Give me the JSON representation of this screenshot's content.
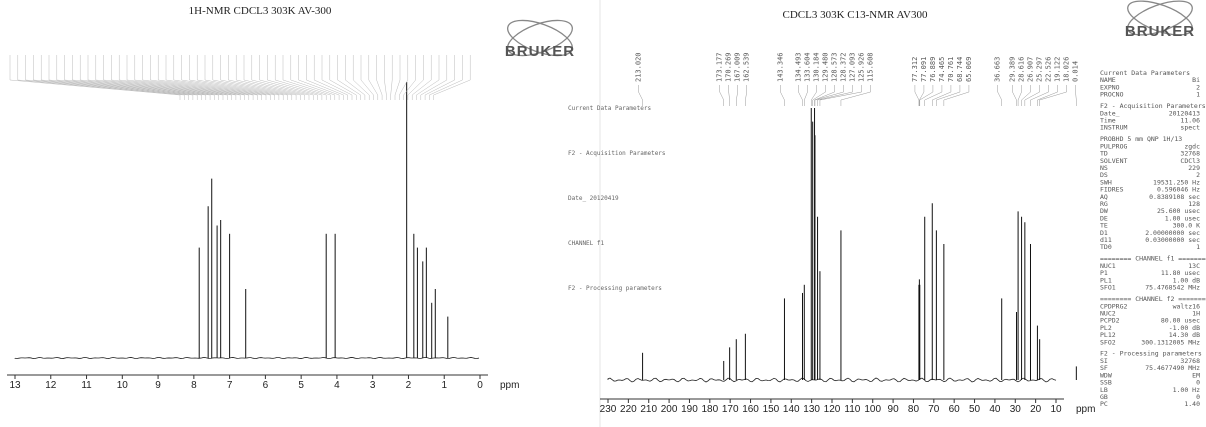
{
  "h1": {
    "title": "1H-NMR  CDCL3  303K  AV-300",
    "logo": "BRUKER",
    "xlim": [
      13,
      0
    ],
    "xticks": [
      13,
      12,
      11,
      10,
      9,
      8,
      7,
      6,
      5,
      4,
      3,
      2,
      1,
      0
    ],
    "xlabel": "ppm",
    "peaks": [
      {
        "shift": 7.85,
        "intensity": 40
      },
      {
        "shift": 7.6,
        "intensity": 55
      },
      {
        "shift": 7.5,
        "intensity": 65
      },
      {
        "shift": 7.35,
        "intensity": 48
      },
      {
        "shift": 7.25,
        "intensity": 50
      },
      {
        "shift": 7.0,
        "intensity": 45
      },
      {
        "shift": 6.55,
        "intensity": 25
      },
      {
        "shift": 4.3,
        "intensity": 45
      },
      {
        "shift": 4.05,
        "intensity": 45
      },
      {
        "shift": 2.05,
        "intensity": 100
      },
      {
        "shift": 1.85,
        "intensity": 45
      },
      {
        "shift": 1.75,
        "intensity": 40
      },
      {
        "shift": 1.6,
        "intensity": 35
      },
      {
        "shift": 1.5,
        "intensity": 40
      },
      {
        "shift": 1.35,
        "intensity": 20
      },
      {
        "shift": 1.25,
        "intensity": 25
      },
      {
        "shift": 0.9,
        "intensity": 15
      }
    ],
    "params": [
      "Current Data Parameters",
      "F2 - Acquisition Parameters",
      "Date_  20120419",
      "CHANNEL f1",
      "F2 - Processing parameters"
    ]
  },
  "c13": {
    "title": "CDCL3    303K   C13-NMR   AV300",
    "logo": "BRUKER",
    "xlim": [
      230,
      10
    ],
    "xticks": [
      230,
      220,
      210,
      200,
      190,
      180,
      170,
      160,
      150,
      140,
      130,
      120,
      110,
      100,
      90,
      80,
      70,
      60,
      50,
      40,
      30,
      20,
      10
    ],
    "xlabel": "ppm",
    "peaks": [
      {
        "label": "213.020",
        "intensity": 10
      },
      {
        "label": "173.177",
        "intensity": 7
      },
      {
        "label": "170.269",
        "intensity": 12
      },
      {
        "label": "167.009",
        "intensity": 15
      },
      {
        "label": "162.539",
        "intensity": 17
      },
      {
        "label": "143.346",
        "intensity": 30
      },
      {
        "label": "134.493",
        "intensity": 32
      },
      {
        "label": "133.604",
        "intensity": 35
      },
      {
        "label": "130.184",
        "intensity": 100
      },
      {
        "label": "129.480",
        "intensity": 95
      },
      {
        "label": "128.573",
        "intensity": 100
      },
      {
        "label": "128.372",
        "intensity": 90
      },
      {
        "label": "127.093",
        "intensity": 60
      },
      {
        "label": "125.926",
        "intensity": 40
      },
      {
        "label": "115.608",
        "intensity": 55
      },
      {
        "label": "77.312",
        "intensity": 35
      },
      {
        "label": "77.091",
        "intensity": 37
      },
      {
        "label": "76.889",
        "intensity": 35
      },
      {
        "label": "74.465",
        "intensity": 60
      },
      {
        "label": "70.761",
        "intensity": 65
      },
      {
        "label": "68.744",
        "intensity": 55
      },
      {
        "label": "65.069",
        "intensity": 50
      },
      {
        "label": "36.663",
        "intensity": 30
      },
      {
        "label": "29.389",
        "intensity": 25
      },
      {
        "label": "28.616",
        "intensity": 62
      },
      {
        "label": "26.907",
        "intensity": 60
      },
      {
        "label": "25.297",
        "intensity": 58
      },
      {
        "label": "22.526",
        "intensity": 50
      },
      {
        "label": "19.122",
        "intensity": 20
      },
      {
        "label": "18.026",
        "intensity": 15
      },
      {
        "label": "0.014",
        "intensity": 5
      }
    ],
    "params": [
      [
        "Current Data Parameters"
      ],
      [
        "NAME",
        "Bi"
      ],
      [
        "EXPNO",
        "2"
      ],
      [
        "PROCNO",
        "1"
      ],
      [
        "F2 - Acquisition Parameters"
      ],
      [
        "Date_",
        "20120413"
      ],
      [
        "Time",
        "11.06"
      ],
      [
        "INSTRUM",
        "spect"
      ],
      [
        "PROBHD   5 mm QNP 1H/13"
      ],
      [
        "PULPROG",
        "zgdc"
      ],
      [
        "TD",
        "32768"
      ],
      [
        "SOLVENT",
        "CDCl3"
      ],
      [
        "NS",
        "229"
      ],
      [
        "DS",
        "2"
      ],
      [
        "SWH",
        "19531.250 Hz"
      ],
      [
        "FIDRES",
        "0.596046 Hz"
      ],
      [
        "AQ",
        "0.8389108 sec"
      ],
      [
        "RG",
        "128"
      ],
      [
        "DW",
        "25.600 usec"
      ],
      [
        "DE",
        "1.00 usec"
      ],
      [
        "TE",
        "300.0 K"
      ],
      [
        "D1",
        "2.00000000 sec"
      ],
      [
        "d11",
        "0.03000000 sec"
      ],
      [
        "TD0",
        "1"
      ],
      [
        "======== CHANNEL f1 ========"
      ],
      [
        "NUC1",
        "13C"
      ],
      [
        "P1",
        "11.80 usec"
      ],
      [
        "PL1",
        "1.00 dB"
      ],
      [
        "SFO1",
        "75.4768542 MHz"
      ],
      [
        "======== CHANNEL f2 ========"
      ],
      [
        "CPDPRG2",
        "waltz16"
      ],
      [
        "NUC2",
        "1H"
      ],
      [
        "PCPD2",
        "80.00 usec"
      ],
      [
        "PL2",
        "-1.00 dB"
      ],
      [
        "PL12",
        "14.30 dB"
      ],
      [
        "SFO2",
        "300.1312005 MHz"
      ],
      [
        "F2 - Processing parameters"
      ],
      [
        "SI",
        "32768"
      ],
      [
        "SF",
        "75.4677490 MHz"
      ],
      [
        "WDW",
        "EM"
      ],
      [
        "SSB",
        "0"
      ],
      [
        "LB",
        "1.00 Hz"
      ],
      [
        "GB",
        "0"
      ],
      [
        "PC",
        "1.40"
      ]
    ]
  }
}
